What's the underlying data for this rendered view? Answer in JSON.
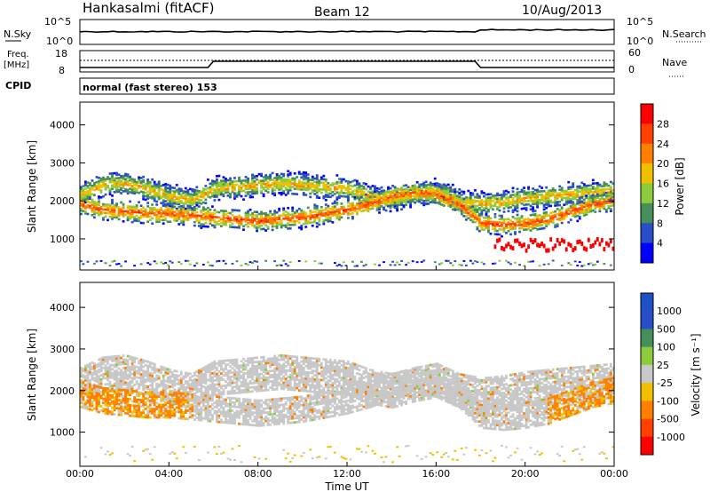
{
  "header": {
    "station": "Hankasalmi (fitACF)",
    "beam": "Beam 12",
    "date": "10/Aug/2013"
  },
  "top_panels": {
    "nsky": {
      "label": "N.Sky",
      "tick_top": "10^5",
      "tick_bottom": "10^0"
    },
    "nsearch": {
      "label": "N.Search",
      "tick_top": "10^5",
      "tick_bottom": "10^0"
    },
    "freq": {
      "label_line1": "Freq.",
      "label_line2": "[MHz]",
      "tick_top": "18",
      "tick_bottom": "8"
    },
    "nave": {
      "label": "Nave",
      "tick_top": "60",
      "tick_bottom": "0"
    },
    "cpid": {
      "label": "CPID",
      "mode": "normal (fast stereo) 153"
    }
  },
  "x_axis": {
    "label": "Time UT",
    "ticks": [
      "00:00",
      "04:00",
      "08:00",
      "12:00",
      "16:00",
      "20:00",
      "00:00"
    ]
  },
  "colors": {
    "power_scale": [
      "#0000ff",
      "#2a4ec8",
      "#468e5a",
      "#8ccc3c",
      "#f0c000",
      "#ff8000",
      "#ff4000",
      "#ff0000"
    ],
    "velocity_scale": [
      "#2050c8",
      "#2a4ec8",
      "#468e5a",
      "#8ccc3c",
      "#c8c8c8",
      "#f0c000",
      "#ff8000",
      "#ff4000",
      "#ff0000"
    ]
  },
  "chart_data": [
    {
      "type": "heatmap",
      "name": "power",
      "ylabel": "Slant Range [km]",
      "ylim": [
        180,
        4600
      ],
      "yticks": [
        "1000",
        "2000",
        "3000",
        "4000"
      ],
      "xlim_hours": [
        0,
        24
      ],
      "colorbar": {
        "label": "Power [dB]",
        "ticks": [
          "4",
          "8",
          "12",
          "16",
          "20",
          "24",
          "28"
        ]
      },
      "bands": [
        {
          "t": [
            0,
            1,
            2,
            3,
            4,
            5,
            6,
            7,
            8,
            9,
            10,
            11,
            12,
            13,
            14,
            15,
            16,
            17,
            18,
            19,
            20,
            21,
            22,
            23,
            24
          ],
          "center": [
            2150,
            2400,
            2450,
            2300,
            2100,
            2000,
            2300,
            2350,
            2400,
            2450,
            2400,
            2350,
            2300,
            2100,
            2000,
            2150,
            2250,
            2000,
            1900,
            1950,
            2050,
            2100,
            2150,
            2200,
            2250
          ],
          "width": 300,
          "power": 20
        },
        {
          "t": [
            0,
            1,
            2,
            3,
            4,
            5,
            6,
            7,
            8,
            9,
            10,
            11,
            12,
            13,
            14,
            15,
            16,
            17,
            18,
            19,
            20,
            21,
            22,
            23,
            24
          ],
          "center": [
            1900,
            1750,
            1700,
            1650,
            1650,
            1600,
            1550,
            1500,
            1450,
            1500,
            1550,
            1650,
            1750,
            1900,
            2100,
            2200,
            2150,
            1900,
            1400,
            1350,
            1400,
            1500,
            1700,
            1900,
            2000
          ],
          "width": 220,
          "power": 26
        }
      ]
    },
    {
      "type": "heatmap",
      "name": "velocity",
      "ylabel": "Slant Range [km]",
      "ylim": [
        180,
        4600
      ],
      "yticks": [
        "1000",
        "2000",
        "3000",
        "4000"
      ],
      "xlim_hours": [
        0,
        24
      ],
      "colorbar": {
        "label": "Velocity [m s⁻¹]",
        "ticks": [
          "1000",
          "500",
          "100",
          "25",
          "-25",
          "-100",
          "-500",
          "-1000"
        ]
      }
    }
  ]
}
